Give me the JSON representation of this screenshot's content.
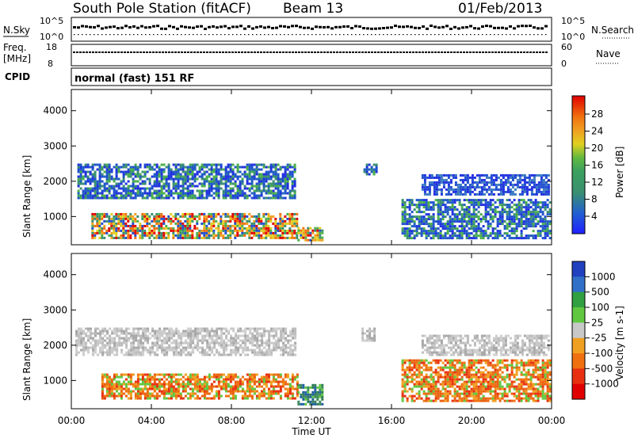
{
  "header": {
    "station": "South Pole Station (fitACF)",
    "beam": "Beam 13",
    "date": "01/Feb/2013"
  },
  "top_panels": {
    "nsky_label": "N.Sky",
    "nsearch_label": "N.Search",
    "nsky_ticks": [
      "10^5",
      "10^0"
    ],
    "nsearch_ticks": [
      "10^5",
      "10^0"
    ],
    "freq_label_1": "Freq.",
    "freq_label_2": "[MHz]",
    "freq_ticks": [
      "18",
      "8"
    ],
    "nave_label": "Nave",
    "nave_ticks": [
      "60",
      "0"
    ],
    "cpid_label": "CPID",
    "cpid_text": "normal (fast) 151 RF"
  },
  "chart_data": [
    {
      "type": "heatmap",
      "name": "power",
      "ylabel": "Slant Range [km]",
      "y_ticks": [
        "1000",
        "2000",
        "3000",
        "4000"
      ],
      "ylim": [
        200,
        4600
      ],
      "colorbar_title": "Power [dB]",
      "colorbar_ticks": [
        "28",
        "24",
        "20",
        "16",
        "12",
        "8",
        "4"
      ],
      "colorbar_colors": [
        "#2020ff",
        "#2050d0",
        "#3a7ac0",
        "#3a9a6a",
        "#4ab04a",
        "#a0c840",
        "#e8d020",
        "#f0a020",
        "#f07010",
        "#e83010",
        "#e00000"
      ],
      "regions": [
        {
          "x": [
            0.3,
            11.2
          ],
          "y": [
            1500,
            2500
          ],
          "level": "mid"
        },
        {
          "x": [
            1.0,
            11.3
          ],
          "y": [
            400,
            1100
          ],
          "level": "high"
        },
        {
          "x": [
            11.3,
            12.6
          ],
          "y": [
            300,
            700
          ],
          "level": "high"
        },
        {
          "x": [
            14.6,
            15.2
          ],
          "y": [
            2200,
            2500
          ],
          "level": "mid"
        },
        {
          "x": [
            17.5,
            23.8
          ],
          "y": [
            1600,
            2200
          ],
          "level": "low"
        },
        {
          "x": [
            16.5,
            23.9
          ],
          "y": [
            400,
            1500
          ],
          "level": "mid"
        }
      ]
    },
    {
      "type": "heatmap",
      "name": "velocity",
      "ylabel": "Slant Range [km]",
      "y_ticks": [
        "1000",
        "2000",
        "3000",
        "4000"
      ],
      "ylim": [
        200,
        4600
      ],
      "colorbar_title": "Velocity [m s-1]",
      "colorbar_ticks": [
        "1000",
        "500",
        "100",
        "25",
        "-25",
        "-100",
        "-500",
        "-1000"
      ],
      "colorbar_colors": [
        "#2040c0",
        "#3070c8",
        "#30a040",
        "#60c840",
        "#c8c8c8",
        "#f0a020",
        "#f07010",
        "#e83010",
        "#e00000"
      ],
      "regions": [
        {
          "x": [
            0.2,
            11.2
          ],
          "y": [
            1700,
            2500
          ],
          "level": "ground"
        },
        {
          "x": [
            1.5,
            11.3
          ],
          "y": [
            500,
            1200
          ],
          "level": "neg"
        },
        {
          "x": [
            11.3,
            12.6
          ],
          "y": [
            300,
            900
          ],
          "level": "pos"
        },
        {
          "x": [
            14.5,
            15.2
          ],
          "y": [
            2100,
            2500
          ],
          "level": "ground"
        },
        {
          "x": [
            17.5,
            23.8
          ],
          "y": [
            1700,
            2300
          ],
          "level": "ground"
        },
        {
          "x": [
            16.5,
            23.9
          ],
          "y": [
            400,
            1600
          ],
          "level": "neg"
        }
      ]
    }
  ],
  "x_axis": {
    "label": "Time UT",
    "ticks": [
      "00:00",
      "04:00",
      "08:00",
      "12:00",
      "16:00",
      "20:00",
      "00:00"
    ],
    "hours": [
      0,
      4,
      8,
      12,
      16,
      20,
      24
    ]
  }
}
